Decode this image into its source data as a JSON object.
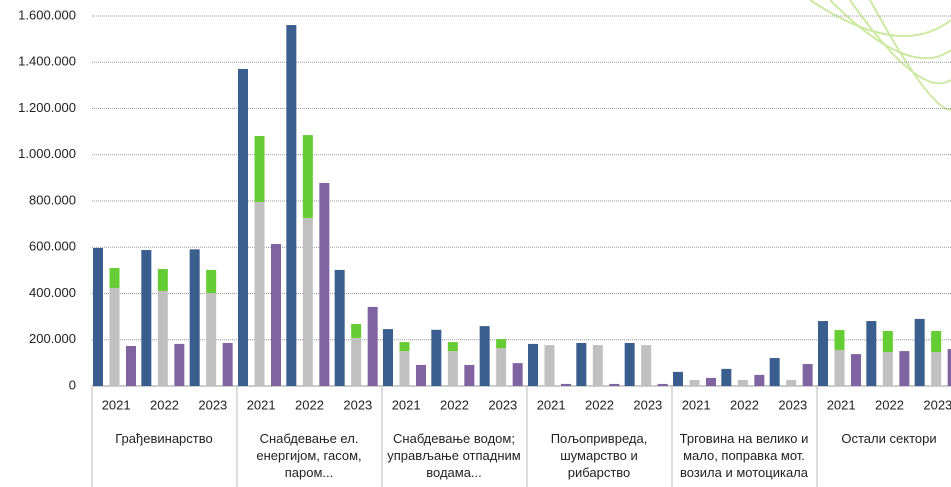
{
  "chart_data": {
    "type": "bar",
    "groups": [
      {
        "name": "Грађевинарство",
        "categories": [
          "2021",
          "2022",
          "2023"
        ]
      },
      {
        "name": "Снабдевање ел. енергијом, гасом, паром...",
        "categories": [
          "2021",
          "2022",
          "2023"
        ]
      },
      {
        "name": "Снабдевање водом; управљање отпадним водама...",
        "categories": [
          "2021",
          "2022",
          "2023"
        ]
      },
      {
        "name": "Пољопривреда, шумарство и рибарство",
        "categories": [
          "2021",
          "2022",
          "2023"
        ]
      },
      {
        "name": "Трговина на велико и мало, поправка мот. возила и мотоцикала",
        "categories": [
          "2021",
          "2022",
          "2023"
        ]
      },
      {
        "name": "Остали сектори",
        "categories": [
          "2021",
          "2022",
          "2023"
        ]
      }
    ],
    "series": [
      {
        "color": "#3a5f8f",
        "values": [
          597000,
          588000,
          591000,
          1371000,
          1561000,
          502000,
          246000,
          243000,
          259000,
          182000,
          186000,
          186000,
          61000,
          74000,
          121000,
          281000,
          281000,
          290000
        ]
      },
      {
        "color": "#c0c0c0",
        "values": [
          424000,
          411000,
          402000,
          796000,
          727000,
          208000,
          151000,
          151000,
          164000,
          177000,
          177000,
          177000,
          26000,
          26000,
          26000,
          156000,
          147000,
          147000
        ]
      },
      {
        "color": "#66cc33",
        "stacked": true,
        "values": [
          86000,
          95000,
          100000,
          285000,
          358000,
          60000,
          39000,
          39000,
          39000,
          0,
          0,
          0,
          0,
          0,
          0,
          86000,
          91000,
          91000
        ]
      },
      {
        "color": "#8064a2",
        "values": [
          173000,
          182000,
          186000,
          614000,
          878000,
          342000,
          91000,
          91000,
          99000,
          9000,
          9000,
          9000,
          35000,
          48000,
          95000,
          138000,
          151000,
          160000
        ]
      }
    ],
    "ylim": [
      0,
      1600000
    ],
    "yticks": [
      0,
      {
        "value": 200000,
        "label": "200.000"
      },
      {
        "value": 400000,
        "label": "400.000"
      },
      {
        "value": 600000,
        "label": "600.000"
      },
      {
        "value": 800000,
        "label": "800.000"
      },
      {
        "value": 1000000,
        "label": "1.000.000"
      },
      {
        "value": 1200000,
        "label": "1.200.000"
      },
      {
        "value": 1400000,
        "label": "1.400.000"
      },
      {
        "value": 1600000,
        "label": "1.600.000"
      }
    ],
    "grid": true
  }
}
